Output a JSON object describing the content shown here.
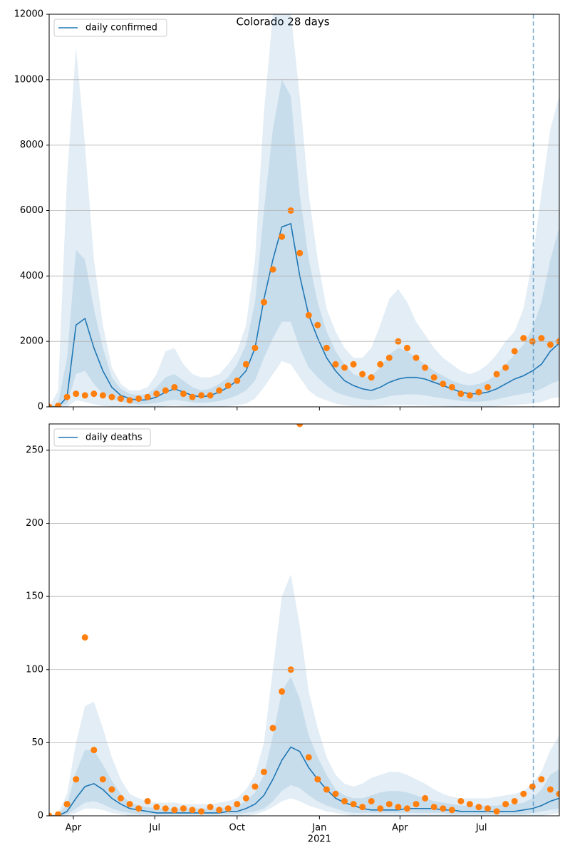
{
  "chart_data": [
    {
      "type": "line",
      "title": "Colorado 28 days",
      "x": [
        4,
        14,
        24,
        34,
        44,
        54,
        64,
        74,
        84,
        94,
        104,
        114,
        124,
        134,
        144,
        154,
        164,
        174,
        184,
        194,
        204,
        214,
        224,
        234,
        244,
        254,
        264,
        274,
        284,
        294,
        304,
        314,
        324,
        334,
        344,
        354,
        364,
        374,
        384,
        394,
        404,
        414,
        424,
        434,
        444,
        454,
        464,
        474,
        484,
        494,
        504,
        514,
        524,
        534,
        544,
        554,
        564,
        574
      ],
      "xlim": [
        4,
        574
      ],
      "ylim": [
        0,
        12000
      ],
      "yticks": [
        0,
        2000,
        4000,
        6000,
        8000,
        10000,
        12000
      ],
      "grid": true,
      "vline": 545,
      "legend": "upper left",
      "series": [
        {
          "name": "daily confirmed",
          "color": "#1f77b4",
          "values": [
            0,
            0,
            300,
            2500,
            2700,
            1800,
            1100,
            600,
            350,
            250,
            200,
            220,
            300,
            450,
            550,
            450,
            350,
            300,
            350,
            450,
            600,
            800,
            1100,
            1800,
            3300,
            4500,
            5500,
            5600,
            4000,
            2800,
            2100,
            1500,
            1100,
            800,
            650,
            550,
            500,
            600,
            750,
            850,
            900,
            900,
            850,
            750,
            650,
            550,
            450,
            400,
            400,
            450,
            550,
            700,
            850,
            950,
            1100,
            1300,
            1700,
            1950
          ]
        }
      ],
      "bands": [
        {
          "color": "#1f77b4",
          "lower": [
            0,
            0,
            0,
            200,
            150,
            80,
            30,
            10,
            0,
            0,
            0,
            0,
            0,
            20,
            40,
            20,
            10,
            0,
            0,
            0,
            20,
            50,
            100,
            250,
            600,
            1000,
            1400,
            1300,
            900,
            500,
            300,
            200,
            100,
            50,
            30,
            20,
            20,
            30,
            50,
            60,
            60,
            50,
            40,
            30,
            20,
            10,
            0,
            0,
            0,
            0,
            20,
            40,
            60,
            80,
            100,
            150,
            250,
            300
          ],
          "upper": [
            0,
            500,
            7000,
            11000,
            8000,
            4500,
            2500,
            1200,
            700,
            500,
            500,
            600,
            1000,
            1700,
            1800,
            1300,
            1000,
            900,
            900,
            1000,
            1300,
            1700,
            2500,
            4500,
            9000,
            12000,
            12000,
            12000,
            9500,
            6500,
            4500,
            3000,
            2300,
            1800,
            1500,
            1500,
            1800,
            2500,
            3300,
            3600,
            3200,
            2600,
            2200,
            1800,
            1500,
            1300,
            1100,
            1000,
            1100,
            1300,
            1600,
            2000,
            2300,
            3000,
            4500,
            6500,
            8500,
            9500
          ]
        },
        {
          "color": "#1f77b4",
          "lower": [
            0,
            0,
            100,
            1000,
            1100,
            700,
            400,
            250,
            150,
            100,
            80,
            90,
            120,
            180,
            220,
            180,
            140,
            120,
            140,
            180,
            250,
            350,
            500,
            800,
            1500,
            2100,
            2600,
            2600,
            1800,
            1200,
            900,
            650,
            450,
            350,
            280,
            230,
            210,
            250,
            320,
            360,
            380,
            380,
            350,
            300,
            260,
            220,
            180,
            160,
            160,
            180,
            230,
            290,
            350,
            400,
            450,
            550,
            700,
            800
          ],
          "upper": [
            0,
            100,
            1500,
            4800,
            4500,
            3000,
            1800,
            900,
            550,
            400,
            350,
            400,
            600,
            900,
            1000,
            800,
            600,
            500,
            550,
            700,
            900,
            1300,
            1900,
            3200,
            6000,
            8500,
            10000,
            9500,
            6500,
            4500,
            3200,
            2300,
            1700,
            1300,
            1000,
            900,
            950,
            1200,
            1600,
            1800,
            1700,
            1500,
            1300,
            1100,
            950,
            800,
            700,
            650,
            700,
            800,
            1000,
            1300,
            1600,
            1900,
            2400,
            3200,
            4500,
            5500
          ]
        }
      ],
      "observed": {
        "color": "#ff7f0e",
        "values": [
          0,
          30,
          300,
          400,
          350,
          400,
          350,
          300,
          250,
          200,
          250,
          300,
          400,
          500,
          600,
          400,
          300,
          350,
          350,
          500,
          650,
          800,
          1300,
          1800,
          3200,
          4200,
          5200,
          6000,
          4700,
          2800,
          2500,
          1800,
          1300,
          1200,
          1300,
          1000,
          900,
          1300,
          1500,
          2000,
          1800,
          1500,
          1200,
          900,
          700,
          600,
          400,
          350,
          450,
          600,
          1000,
          1200,
          1700,
          2100,
          2000,
          2100,
          1900,
          2000
        ]
      }
    },
    {
      "type": "line",
      "x": [
        4,
        14,
        24,
        34,
        44,
        54,
        64,
        74,
        84,
        94,
        104,
        114,
        124,
        134,
        144,
        154,
        164,
        174,
        184,
        194,
        204,
        214,
        224,
        234,
        244,
        254,
        264,
        274,
        284,
        294,
        304,
        314,
        324,
        334,
        344,
        354,
        364,
        374,
        384,
        394,
        404,
        414,
        424,
        434,
        444,
        454,
        464,
        474,
        484,
        494,
        504,
        514,
        524,
        534,
        544,
        554,
        564,
        574
      ],
      "xlim": [
        4,
        574
      ],
      "xticks": [
        {
          "value": 31,
          "label": "Apr"
        },
        {
          "value": 122,
          "label": "Jul"
        },
        {
          "value": 214,
          "label": "Oct"
        },
        {
          "value": 306,
          "label": "Jan"
        },
        {
          "value": 396,
          "label": "Apr"
        },
        {
          "value": 487,
          "label": "Jul"
        }
      ],
      "x_sublabel": {
        "value": 306,
        "label": "2021"
      },
      "ylim": [
        0,
        268
      ],
      "yticks": [
        0,
        50,
        100,
        150,
        200,
        250
      ],
      "grid": true,
      "vline": 545,
      "legend": "upper left",
      "series": [
        {
          "name": "daily deaths",
          "color": "#1f77b4",
          "values": [
            0,
            0,
            3,
            12,
            20,
            22,
            18,
            12,
            8,
            5,
            4,
            3,
            2,
            2,
            2,
            2,
            2,
            2,
            2,
            2,
            3,
            3,
            5,
            8,
            14,
            25,
            38,
            47,
            44,
            33,
            25,
            18,
            12,
            9,
            7,
            5,
            4,
            4,
            4,
            4,
            5,
            5,
            5,
            5,
            4,
            4,
            3,
            3,
            3,
            3,
            3,
            3,
            3,
            4,
            5,
            7,
            10,
            12
          ]
        }
      ],
      "bands": [
        {
          "color": "#1f77b4",
          "lower": [
            0,
            0,
            0,
            2,
            5,
            5,
            4,
            2,
            1,
            0,
            0,
            0,
            0,
            0,
            0,
            0,
            0,
            0,
            0,
            0,
            0,
            0,
            0,
            1,
            3,
            6,
            10,
            12,
            10,
            7,
            5,
            3,
            2,
            1,
            0,
            0,
            0,
            0,
            0,
            0,
            0,
            0,
            0,
            0,
            0,
            0,
            0,
            0,
            0,
            0,
            0,
            0,
            0,
            0,
            0,
            0,
            1,
            2
          ],
          "upper": [
            0,
            2,
            15,
            50,
            75,
            78,
            60,
            40,
            25,
            15,
            12,
            10,
            9,
            9,
            9,
            8,
            8,
            8,
            8,
            9,
            10,
            12,
            18,
            28,
            50,
            100,
            150,
            165,
            130,
            85,
            60,
            40,
            28,
            22,
            20,
            22,
            26,
            28,
            30,
            30,
            28,
            25,
            22,
            18,
            15,
            13,
            12,
            12,
            12,
            12,
            13,
            14,
            15,
            17,
            22,
            30,
            45,
            55
          ]
        },
        {
          "color": "#1f77b4",
          "lower": [
            0,
            0,
            1,
            5,
            9,
            10,
            8,
            5,
            3,
            2,
            1,
            1,
            1,
            1,
            1,
            1,
            1,
            1,
            1,
            1,
            1,
            1,
            2,
            3,
            5,
            10,
            17,
            21,
            19,
            14,
            10,
            7,
            5,
            3,
            2,
            2,
            2,
            2,
            2,
            2,
            2,
            2,
            2,
            2,
            2,
            1,
            1,
            1,
            1,
            1,
            1,
            1,
            1,
            1,
            2,
            3,
            4,
            5
          ],
          "upper": [
            0,
            1,
            8,
            30,
            45,
            45,
            35,
            24,
            15,
            9,
            7,
            6,
            5,
            5,
            5,
            5,
            5,
            5,
            5,
            5,
            6,
            7,
            10,
            16,
            28,
            55,
            85,
            95,
            80,
            55,
            40,
            28,
            18,
            14,
            12,
            12,
            14,
            16,
            17,
            17,
            16,
            14,
            12,
            10,
            9,
            8,
            7,
            7,
            7,
            7,
            7,
            8,
            8,
            9,
            12,
            18,
            28,
            32
          ]
        }
      ],
      "observed": {
        "color": "#ff7f0e",
        "values": [
          0,
          1,
          8,
          25,
          122,
          45,
          25,
          18,
          12,
          8,
          5,
          10,
          6,
          5,
          4,
          5,
          4,
          3,
          6,
          4,
          5,
          8,
          12,
          20,
          30,
          60,
          85,
          100,
          268,
          40,
          25,
          18,
          15,
          10,
          8,
          6,
          10,
          5,
          8,
          6,
          5,
          8,
          12,
          6,
          5,
          4,
          10,
          8,
          6,
          5,
          3,
          8,
          10,
          15,
          20,
          25,
          18,
          15
        ]
      }
    }
  ]
}
